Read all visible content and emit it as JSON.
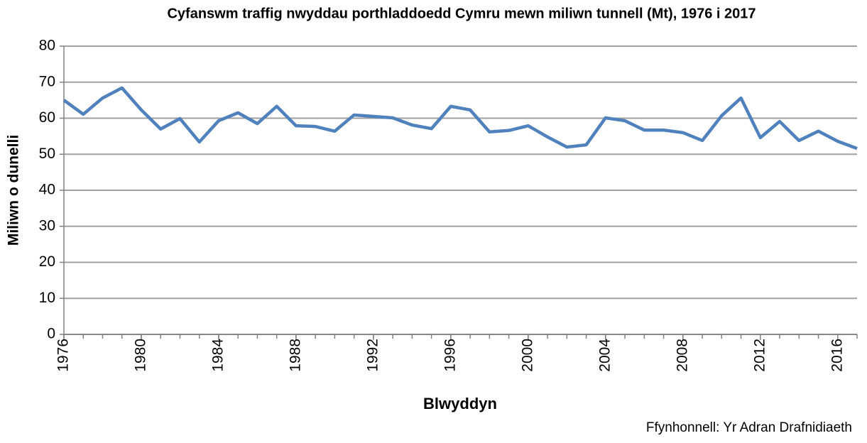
{
  "chart_data": {
    "type": "line",
    "title": "Cyfanswm traffig nwyddau porthladdoedd Cymru mewn miliwn tunnell (Mt), 1976 i 2017",
    "x_label": "Blwyddyn",
    "y_label": "Miliwn o dunelli",
    "source": "Ffynhonnell: Yr Adran Drafnidiaeth",
    "x": [
      1976,
      1977,
      1978,
      1979,
      1980,
      1981,
      1982,
      1983,
      1984,
      1985,
      1986,
      1987,
      1988,
      1989,
      1990,
      1991,
      1992,
      1993,
      1994,
      1995,
      1996,
      1997,
      1998,
      1999,
      2000,
      2001,
      2002,
      2003,
      2004,
      2005,
      2006,
      2007,
      2008,
      2009,
      2010,
      2011,
      2012,
      2013,
      2014,
      2015,
      2016,
      2017
    ],
    "series": [
      {
        "color": "#4f81bd",
        "values": [
          65.0,
          61.1,
          65.6,
          68.4,
          62.3,
          57.0,
          59.9,
          53.4,
          59.3,
          61.5,
          58.5,
          63.3,
          57.9,
          57.7,
          56.4,
          60.9,
          60.5,
          60.1,
          58.1,
          57.1,
          63.3,
          62.3,
          56.2,
          56.6,
          57.9,
          54.8,
          52.0,
          52.6,
          60.1,
          59.3,
          56.7,
          56.7,
          56.0,
          53.8,
          60.7,
          65.6,
          54.6,
          59.1,
          53.8,
          56.4,
          53.6,
          51.6
        ]
      }
    ],
    "xlim": [
      1976,
      2017
    ],
    "xticks": [
      1976,
      1980,
      1984,
      1988,
      1992,
      1996,
      2000,
      2004,
      2008,
      2012,
      2016
    ],
    "ylim": [
      0,
      80
    ],
    "yticks": [
      0,
      10,
      20,
      30,
      40,
      50,
      60,
      70,
      80
    ],
    "grid": true
  }
}
